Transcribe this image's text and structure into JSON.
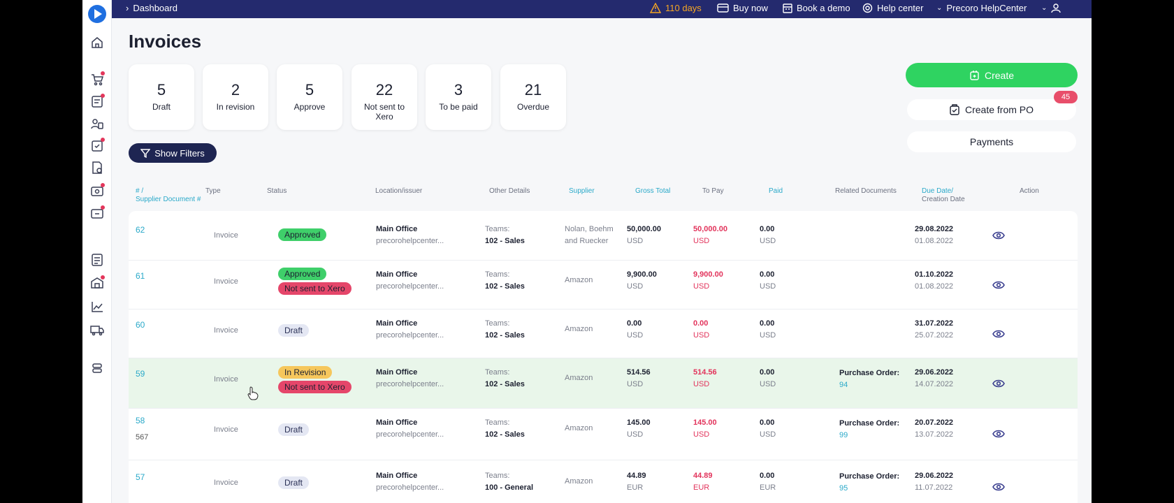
{
  "topbar": {
    "breadcrumb": "Dashboard",
    "trial": "110 days",
    "buy_now": "Buy now",
    "book_demo": "Book a demo",
    "help_center": "Help center",
    "company": "Precoro HelpCenter",
    "trial_color": "#f5a623"
  },
  "page": {
    "title": "Invoices"
  },
  "stats": [
    {
      "count": "5",
      "label": "Draft"
    },
    {
      "count": "2",
      "label": "In revision"
    },
    {
      "count": "5",
      "label": "Approve"
    },
    {
      "count": "22",
      "label": "Not sent to Xero"
    },
    {
      "count": "3",
      "label": "To be paid"
    },
    {
      "count": "21",
      "label": "Overdue"
    }
  ],
  "actions": {
    "show_filters": "Show Filters",
    "create": "Create",
    "create_from_po": "Create from PO",
    "po_badge": "45",
    "payments": "Payments"
  },
  "columns": {
    "id_1": "# /",
    "id_2": "Supplier Document #",
    "type": "Type",
    "status": "Status",
    "location": "Location/issuer",
    "other": "Other Details",
    "supplier": "Supplier",
    "gross": "Gross Total",
    "topay": "To Pay",
    "paid": "Paid",
    "related": "Related Documents",
    "due_1": "Due Date/",
    "due_2": "Creation Date",
    "action": "Action"
  },
  "rows": [
    {
      "id": "62",
      "doc": "",
      "type": "Invoice",
      "status1": "Approved",
      "status2": "",
      "location": "Main Office",
      "issuer": "precorohelpcenter...",
      "teams_label": "Teams:",
      "team": "102 - Sales",
      "supplier1": "Nolan, Boehm",
      "supplier2": "and Ruecker",
      "gross": "50,000.00",
      "currency": "USD",
      "topay": "50,000.00",
      "paid": "0.00",
      "related_label": "",
      "related_num": "",
      "due": "29.08.2022",
      "created": "01.08.2022"
    },
    {
      "id": "61",
      "doc": "",
      "type": "Invoice",
      "status1": "Approved",
      "status2": "Not sent to Xero",
      "location": "Main Office",
      "issuer": "precorohelpcenter...",
      "teams_label": "Teams:",
      "team": "102 - Sales",
      "supplier1": "Amazon",
      "supplier2": "",
      "gross": "9,900.00",
      "currency": "USD",
      "topay": "9,900.00",
      "paid": "0.00",
      "related_label": "",
      "related_num": "",
      "due": "01.10.2022",
      "created": "01.08.2022"
    },
    {
      "id": "60",
      "doc": "",
      "type": "Invoice",
      "status1": "Draft",
      "status2": "",
      "location": "Main Office",
      "issuer": "precorohelpcenter...",
      "teams_label": "Teams:",
      "team": "102 - Sales",
      "supplier1": "Amazon",
      "supplier2": "",
      "gross": "0.00",
      "currency": "USD",
      "topay": "0.00",
      "paid": "0.00",
      "related_label": "",
      "related_num": "",
      "due": "31.07.2022",
      "created": "25.07.2022"
    },
    {
      "id": "59",
      "doc": "",
      "type": "Invoice",
      "status1": "In Revision",
      "status2": "Not sent to Xero",
      "location": "Main Office",
      "issuer": "precorohelpcenter...",
      "teams_label": "Teams:",
      "team": "102 - Sales",
      "supplier1": "Amazon",
      "supplier2": "",
      "gross": "514.56",
      "currency": "USD",
      "topay": "514.56",
      "paid": "0.00",
      "related_label": "Purchase Order:",
      "related_num": "94",
      "due": "29.06.2022",
      "created": "14.07.2022"
    },
    {
      "id": "58",
      "doc": "567",
      "type": "Invoice",
      "status1": "Draft",
      "status2": "",
      "location": "Main Office",
      "issuer": "precorohelpcenter...",
      "teams_label": "Teams:",
      "team": "102 - Sales",
      "supplier1": "Amazon",
      "supplier2": "",
      "gross": "145.00",
      "currency": "USD",
      "topay": "145.00",
      "paid": "0.00",
      "related_label": "Purchase Order:",
      "related_num": "99",
      "due": "20.07.2022",
      "created": "13.07.2022"
    },
    {
      "id": "57",
      "doc": "",
      "type": "Invoice",
      "status1": "Draft",
      "status2": "",
      "location": "Main Office",
      "issuer": "precorohelpcenter...",
      "teams_label": "Teams:",
      "team": "100 - General",
      "supplier1": "Amazon",
      "supplier2": "",
      "gross": "44.89",
      "currency": "EUR",
      "topay": "44.89",
      "paid": "0.00",
      "related_label": "Purchase Order:",
      "related_num": "95",
      "due": "29.06.2022",
      "created": "11.07.2022"
    }
  ]
}
